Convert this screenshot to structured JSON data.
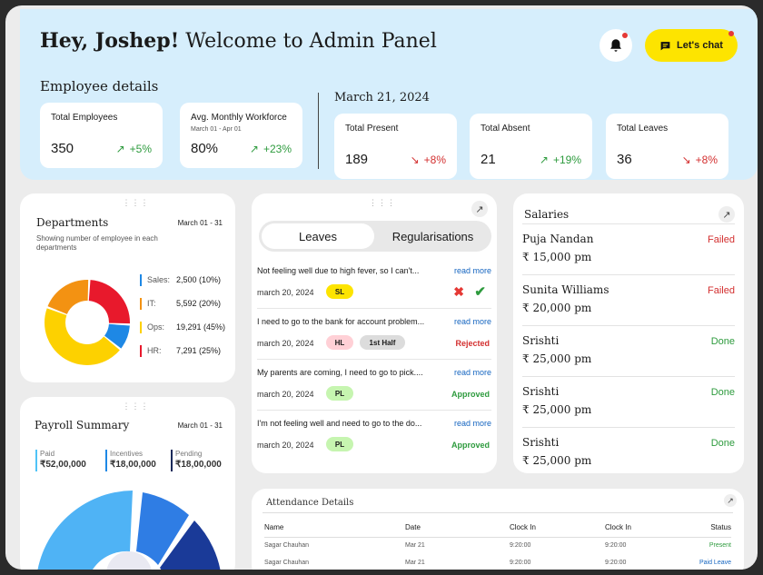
{
  "header": {
    "greeting": "Hey, Joshep!",
    "welcome": "Welcome to Admin Panel",
    "chat_label": "Let's chat",
    "bell_icon": "bell-icon"
  },
  "employee": {
    "title": "Employee details",
    "total_employees": {
      "label": "Total Employees",
      "value": "350",
      "change": "+5%",
      "trend": "up"
    },
    "workforce": {
      "label": "Avg. Monthly Workforce",
      "sub": "March 01 - Apr 01",
      "value": "80%",
      "change": "+23%",
      "trend": "up"
    }
  },
  "daily": {
    "date": "March 21, 2024",
    "present": {
      "label": "Total Present",
      "value": "189",
      "change": "+8%",
      "trend": "down"
    },
    "absent": {
      "label": "Total Absent",
      "value": "21",
      "change": "+19%",
      "trend": "up"
    },
    "leaves": {
      "label": "Total Leaves",
      "value": "36",
      "change": "+8%",
      "trend": "down"
    }
  },
  "departments": {
    "title": "Departments",
    "range": "March 01 - 31",
    "desc": "Showing number of employee in each departments",
    "items": [
      {
        "name": "Sales:",
        "value": "2,500 (10%)",
        "pct": 10,
        "color": "#1e88e5"
      },
      {
        "name": "IT:",
        "value": "5,592 (20%)",
        "pct": 20,
        "color": "#f39212"
      },
      {
        "name": "Ops:",
        "value": "19,291 (45%)",
        "pct": 45,
        "color": "#fdd100"
      },
      {
        "name": "HR:",
        "value": "7,291 (25%)",
        "pct": 25,
        "color": "#e8192c"
      }
    ]
  },
  "payroll": {
    "title": "Payroll Summary",
    "range": "March 01 - 31",
    "items": [
      {
        "label": "Paid",
        "value": "₹52,00,000",
        "color": "#4fc3f7"
      },
      {
        "label": "Incentives",
        "value": "₹18,00,000",
        "color": "#1e88e5"
      },
      {
        "label": "Pending",
        "value": "₹18,00,000",
        "color": "#1a2a5a"
      }
    ]
  },
  "leaves": {
    "tabs": [
      "Leaves",
      "Regularisations"
    ],
    "read_more": "read more",
    "items": [
      {
        "reason": "Not feeling well due to high fever, so I can't...",
        "date": "march 20, 2024",
        "tags": [
          {
            "text": "SL",
            "color": "#fde400"
          }
        ],
        "status": "",
        "actions": true
      },
      {
        "reason": "I need to go to the bank for account problem...",
        "date": "march 20, 2024",
        "tags": [
          {
            "text": "HL",
            "color": "#ffd0d6"
          },
          {
            "text": "1st Half",
            "color": "#dcdcdc"
          }
        ],
        "status": "Rejected",
        "status_color": "#d32f2f"
      },
      {
        "reason": "My parents are coming, I need to go to pick....",
        "date": "march 20, 2024",
        "tags": [
          {
            "text": "PL",
            "color": "#c6f5b0"
          }
        ],
        "status": "Approved",
        "status_color": "#2e9b3e"
      },
      {
        "reason": "I'm not feeling well and need to go to the do...",
        "date": "march 20, 2024",
        "tags": [
          {
            "text": "PL",
            "color": "#c6f5b0"
          }
        ],
        "status": "Approved",
        "status_color": "#2e9b3e"
      }
    ]
  },
  "salaries": {
    "title": "Salaries",
    "items": [
      {
        "name": "Puja Nandan",
        "amount": "₹ 15,000 pm",
        "status": "Failed",
        "color": "#d32f2f"
      },
      {
        "name": "Sunita Williams",
        "amount": "₹ 20,000 pm",
        "status": "Failed",
        "color": "#d32f2f"
      },
      {
        "name": "Srishti",
        "amount": "₹ 25,000 pm",
        "status": "Done",
        "color": "#2e9b3e"
      },
      {
        "name": "Srishti",
        "amount": "₹ 25,000 pm",
        "status": "Done",
        "color": "#2e9b3e"
      },
      {
        "name": "Srishti",
        "amount": "₹ 25,000 pm",
        "status": "Done",
        "color": "#2e9b3e"
      }
    ]
  },
  "attendance": {
    "title": "Attendance Details",
    "columns": [
      "Name",
      "Date",
      "Clock In",
      "Clock In",
      "Status"
    ],
    "rows": [
      {
        "name": "Sagar Chauhan",
        "date": "Mar 21",
        "in1": "9:20:00",
        "in2": "9:20:00",
        "status": "Present",
        "color": "#2e9b3e"
      },
      {
        "name": "Sagar Chauhan",
        "date": "Mar 21",
        "in1": "9:20:00",
        "in2": "9:20:00",
        "status": "Paid Leave",
        "color": "#1565c0"
      }
    ]
  }
}
